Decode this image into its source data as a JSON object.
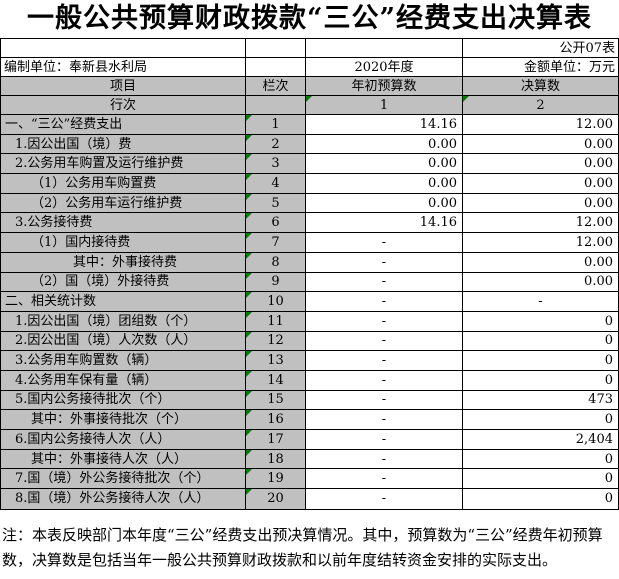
{
  "title": "一般公共预算财政拨款“三公”经费支出决算表",
  "table_label": "公开07表",
  "meta": {
    "prepared_by": "编制单位：奉新县水利局",
    "year": "2020年度",
    "amount_unit": "金额单位：万元"
  },
  "headers": {
    "item": "项目",
    "column_no": "栏次",
    "initial_budget": "年初预算数",
    "final_accounts": "决算数",
    "row_no": "行次",
    "budget_col_index": "1",
    "final_col_index": "2"
  },
  "rows": [
    {
      "item": "一、“三公”经费支出",
      "indent": 0,
      "line": "1",
      "budget": "14.16",
      "final": "12.00"
    },
    {
      "item": "1.因公出国（境）费",
      "indent": 1,
      "line": "2",
      "budget": "0.00",
      "final": "0.00"
    },
    {
      "item": "2.公务用车购置及运行维护费",
      "indent": 1,
      "line": "3",
      "budget": "0.00",
      "final": "0.00"
    },
    {
      "item": "（1）公务用车购置费",
      "indent": 2,
      "line": "4",
      "budget": "0.00",
      "final": "0.00"
    },
    {
      "item": "（2）公务用车运行维护费",
      "indent": 2,
      "line": "5",
      "budget": "0.00",
      "final": "0.00"
    },
    {
      "item": "3.公务接待费",
      "indent": 1,
      "line": "6",
      "budget": "14.16",
      "final": "12.00"
    },
    {
      "item": "（1）国内接待费",
      "indent": 2,
      "line": "7",
      "budget": "-",
      "final": "12.00"
    },
    {
      "item": "其中：外事接待费",
      "indent": 3,
      "line": "8",
      "budget": "-",
      "final": "0.00"
    },
    {
      "item": "（2）国（境）外接待费",
      "indent": 2,
      "line": "9",
      "budget": "-",
      "final": "0.00"
    },
    {
      "item": "二、相关统计数",
      "indent": 0,
      "line": "10",
      "budget": "-",
      "final": "-"
    },
    {
      "item": "1.因公出国（境）团组数（个）",
      "indent": 1,
      "line": "11",
      "budget": "-",
      "final": "0"
    },
    {
      "item": "2.因公出国（境）人次数（人）",
      "indent": 1,
      "line": "12",
      "budget": "-",
      "final": "0"
    },
    {
      "item": "3.公务用车购置数（辆）",
      "indent": 1,
      "line": "13",
      "budget": "-",
      "final": "0"
    },
    {
      "item": "4.公务用车保有量（辆）",
      "indent": 1,
      "line": "14",
      "budget": "-",
      "final": "0"
    },
    {
      "item": "5.国内公务接待批次（个）",
      "indent": 1,
      "line": "15",
      "budget": "-",
      "final": "473"
    },
    {
      "item": "其中：外事接待批次（个）",
      "indent": 2,
      "line": "16",
      "budget": "-",
      "final": "0"
    },
    {
      "item": "6.国内公务接待人次（人）",
      "indent": 1,
      "line": "17",
      "budget": "-",
      "final": "2,404"
    },
    {
      "item": "其中：外事接待人次（人）",
      "indent": 2,
      "line": "18",
      "budget": "-",
      "final": "0"
    },
    {
      "item": "7.国（境）外公务接待批次（个）",
      "indent": 1,
      "line": "19",
      "budget": "-",
      "final": "0"
    },
    {
      "item": "8.国（境）外公务接待人次（人）",
      "indent": 1,
      "line": "20",
      "budget": "-",
      "final": "0"
    }
  ],
  "note": "注：本表反映部门本年度“三公”经费支出预决算情况。其中，预算数为“三公”经费年初预算数，决算数是包括当年一般公共预算财政拨款和以前年度结转资金安排的实际支出。",
  "colors": {
    "header_bg": "#c0c0c0",
    "cell_bg": "#ffffff",
    "border": "#000000",
    "flag_triangle": "#008000"
  }
}
